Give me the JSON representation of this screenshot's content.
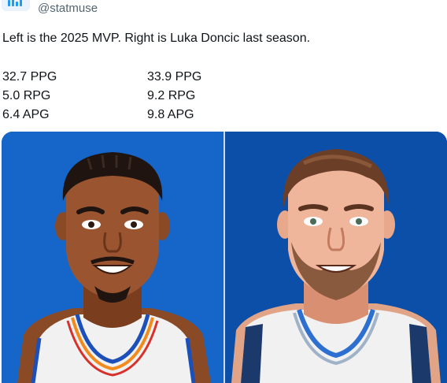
{
  "account": {
    "handle": "@statmuse",
    "avatar_icon": "statmuse-logo-icon"
  },
  "tweet": {
    "text": "Left is the 2025 MVP. Right is Luka Doncic last season."
  },
  "stats": {
    "left": [
      "32.7 PPG",
      "5.0 RPG",
      "6.4 APG"
    ],
    "right": [
      "33.9 PPG",
      "9.2 RPG",
      "9.8 APG"
    ]
  },
  "media": {
    "left_background": "#1566c8",
    "right_background": "#0c4fa8",
    "left_image": "player-illustration-left",
    "right_image": "player-illustration-right"
  }
}
